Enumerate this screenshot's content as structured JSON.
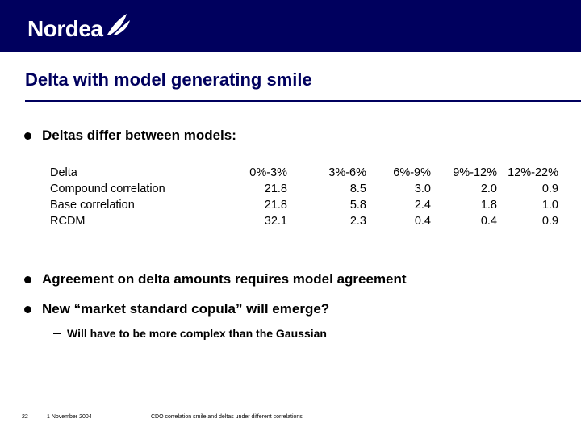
{
  "header": {
    "logo_text": "Nordea"
  },
  "slide": {
    "title": "Delta with model generating smile",
    "bullet1": "Deltas differ between models:",
    "bullet2": "Agreement on delta amounts requires model agreement",
    "bullet3": "New “market standard copula” will emerge?",
    "subbullet": "Will have to be more complex than the Gaussian"
  },
  "table": {
    "header": [
      "Delta",
      "0%-3%",
      "3%-6%",
      "6%-9%",
      "9%-12%",
      "12%-22%"
    ],
    "rows": [
      [
        "Compound correlation",
        "21.8",
        "8.5",
        "3.0",
        "2.0",
        "0.9"
      ],
      [
        "Base correlation",
        "21.8",
        "5.8",
        "2.4",
        "1.8",
        "1.0"
      ],
      [
        "RCDM",
        "32.1",
        "2.3",
        "0.4",
        "0.4",
        "0.9"
      ]
    ]
  },
  "footer": {
    "page_number": "22",
    "date": "1 November 2004",
    "doc_title": "CDO correlation smile and deltas under different correlations"
  },
  "colors": {
    "brand_navy": "#00005e",
    "text": "#000000"
  }
}
